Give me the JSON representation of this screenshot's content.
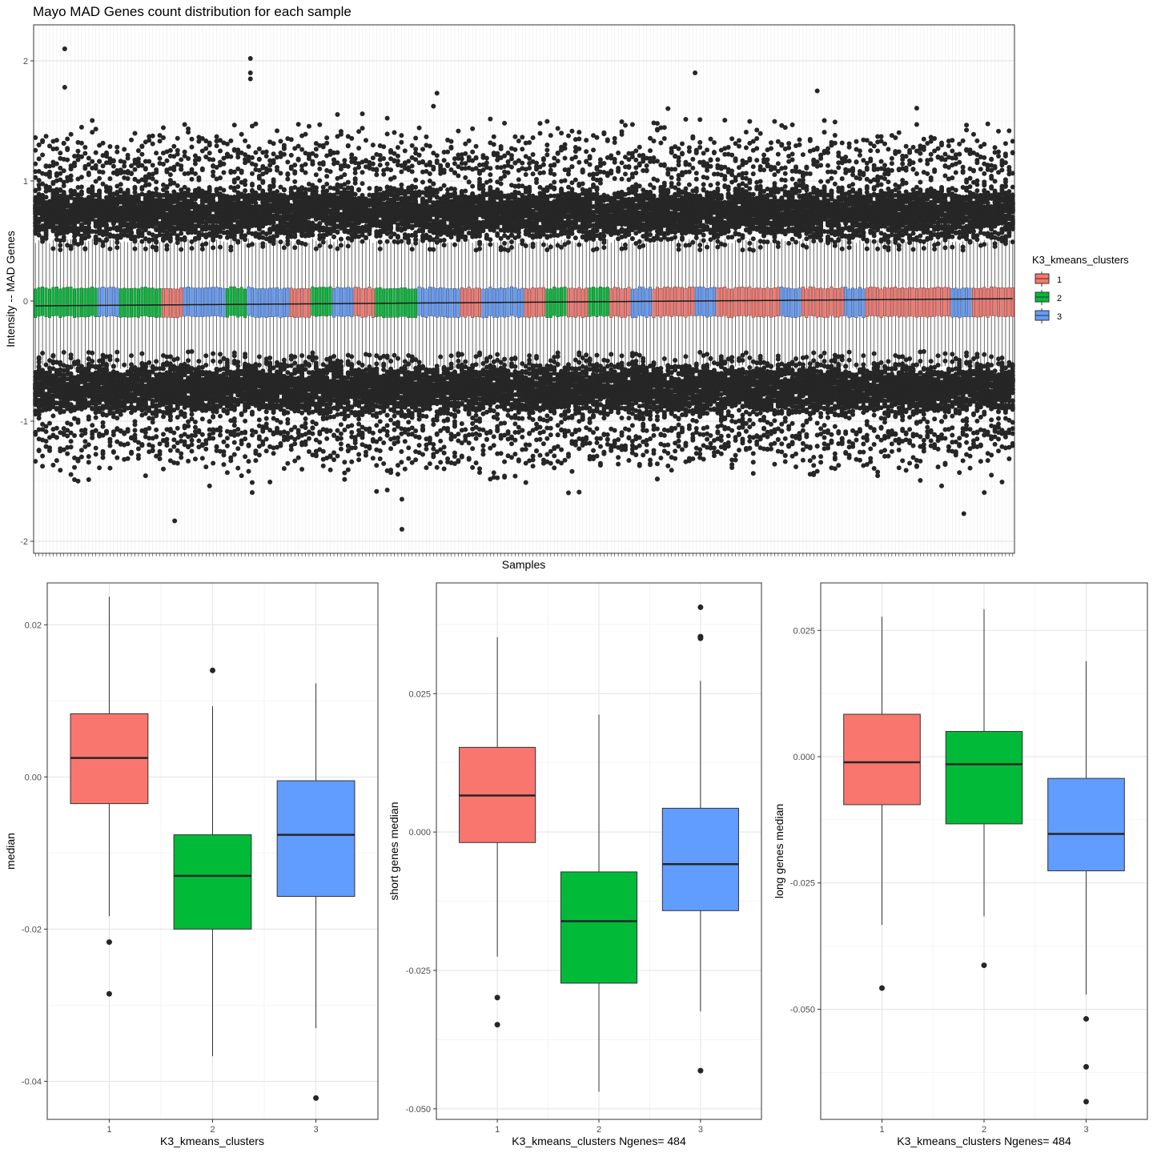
{
  "chart_data": [
    {
      "type": "boxplot",
      "title": "Mayo MAD Genes count distribution for each sample",
      "xlabel": "Samples",
      "ylabel": "Intensity -- MAD Genes",
      "ylim": [
        -2.1,
        2.3
      ],
      "yticks": [
        -2,
        -1,
        0,
        1,
        2
      ],
      "n_samples": 276,
      "box_q1": -0.13,
      "box_q3": 0.11,
      "whisker_low": -0.55,
      "whisker_high": 0.5,
      "median_trend": {
        "start": -0.04,
        "end": 0.02
      },
      "outlier_bands": [
        [
          0.42,
          1.05
        ],
        [
          -1.05,
          -0.42
        ]
      ],
      "extreme_outliers": [
        [
          12,
          2.1
        ],
        [
          12,
          1.78
        ],
        [
          88,
          2.02
        ],
        [
          88,
          1.9
        ],
        [
          88,
          1.85
        ],
        [
          150,
          -1.9
        ],
        [
          270,
          1.9
        ],
        [
          320,
          1.75
        ],
        [
          380,
          -1.77
        ],
        [
          57,
          -1.83
        ],
        [
          150,
          -1.65
        ]
      ],
      "cluster_sequence": [
        "2",
        "2",
        "2",
        "3",
        "2",
        "2",
        "1",
        "3",
        "3",
        "2",
        "3",
        "3",
        "1",
        "2",
        "3",
        "1",
        "2",
        "2",
        "3",
        "3",
        "1",
        "3",
        "3",
        "1",
        "2",
        "1",
        "2",
        "1",
        "3",
        "1",
        "1",
        "3",
        "1",
        "1",
        "1",
        "3",
        "1",
        "1",
        "3",
        "1",
        "1",
        "1",
        "1",
        "3",
        "1",
        "1"
      ],
      "grid": true,
      "legend": {
        "title": "K3_kmeans_clusters",
        "position": "right",
        "entries": [
          {
            "label": "1",
            "color": "#F8766D"
          },
          {
            "label": "2",
            "color": "#00BA38"
          },
          {
            "label": "3",
            "color": "#619CFF"
          }
        ]
      }
    },
    {
      "type": "boxplot",
      "xlabel": "K3_kmeans_clusters",
      "ylabel": "median",
      "categories": [
        "1",
        "2",
        "3"
      ],
      "ylim": [
        -0.045,
        0.0255
      ],
      "yticks": [
        -0.04,
        -0.02,
        0.0,
        0.02
      ],
      "ytick_labels": [
        "-0.04",
        "-0.02",
        "0.00",
        "0.02"
      ],
      "boxes": [
        {
          "category": "1",
          "whisker_low": -0.0183,
          "q1": -0.0035,
          "median": 0.0025,
          "q3": 0.0083,
          "whisker_high": 0.0237,
          "outliers": [
            -0.0217,
            -0.0285
          ],
          "color": "#F8766D"
        },
        {
          "category": "2",
          "whisker_low": -0.0367,
          "q1": -0.02,
          "median": -0.013,
          "q3": -0.0076,
          "whisker_high": 0.0093,
          "outliers": [
            0.014
          ],
          "color": "#00BA38"
        },
        {
          "category": "3",
          "whisker_low": -0.033,
          "q1": -0.0157,
          "median": -0.0076,
          "q3": -0.0005,
          "whisker_high": 0.0123,
          "outliers": [
            -0.0422
          ],
          "color": "#619CFF"
        }
      ]
    },
    {
      "type": "boxplot",
      "xlabel": "K3_kmeans_clusters Ngenes= 484",
      "ylabel": "short genes median",
      "categories": [
        "1",
        "2",
        "3"
      ],
      "ylim": [
        -0.0519,
        0.045
      ],
      "yticks": [
        -0.05,
        -0.025,
        0.0,
        0.025
      ],
      "ytick_labels": [
        "-0.050",
        "-0.025",
        "0.000",
        "0.025"
      ],
      "boxes": [
        {
          "category": "1",
          "whisker_low": -0.0225,
          "q1": -0.0019,
          "median": 0.0066,
          "q3": 0.0153,
          "whisker_high": 0.0352,
          "outliers": [
            -0.0299,
            -0.0348
          ],
          "color": "#F8766D"
        },
        {
          "category": "2",
          "whisker_low": -0.0469,
          "q1": -0.0273,
          "median": -0.0161,
          "q3": -0.0072,
          "whisker_high": 0.0212,
          "outliers": [],
          "color": "#00BA38"
        },
        {
          "category": "3",
          "whisker_low": -0.0324,
          "q1": -0.0142,
          "median": -0.0058,
          "q3": 0.0043,
          "whisker_high": 0.0273,
          "outliers": [
            0.0406,
            0.0353,
            0.035,
            -0.0431
          ],
          "color": "#619CFF"
        }
      ]
    },
    {
      "type": "boxplot",
      "xlabel": "K3_kmeans_clusters Ngenes= 484",
      "ylabel": "long genes median",
      "categories": [
        "1",
        "2",
        "3"
      ],
      "ylim": [
        -0.0718,
        0.0344
      ],
      "yticks": [
        -0.05,
        -0.025,
        0.0,
        0.025
      ],
      "ytick_labels": [
        "-0.050",
        "-0.025",
        "0.000",
        "0.025"
      ],
      "boxes": [
        {
          "category": "1",
          "whisker_low": -0.0333,
          "q1": -0.0095,
          "median": -0.0011,
          "q3": 0.0084,
          "whisker_high": 0.0277,
          "outliers": [
            -0.0458
          ],
          "color": "#F8766D"
        },
        {
          "category": "2",
          "whisker_low": -0.0316,
          "q1": -0.0133,
          "median": -0.0015,
          "q3": 0.005,
          "whisker_high": 0.0292,
          "outliers": [
            -0.0413
          ],
          "color": "#00BA38"
        },
        {
          "category": "3",
          "whisker_low": -0.0471,
          "q1": -0.0226,
          "median": -0.0153,
          "q3": -0.0043,
          "whisker_high": 0.0189,
          "outliers": [
            -0.0519,
            -0.0614,
            -0.0683
          ],
          "color": "#619CFF"
        }
      ]
    }
  ]
}
